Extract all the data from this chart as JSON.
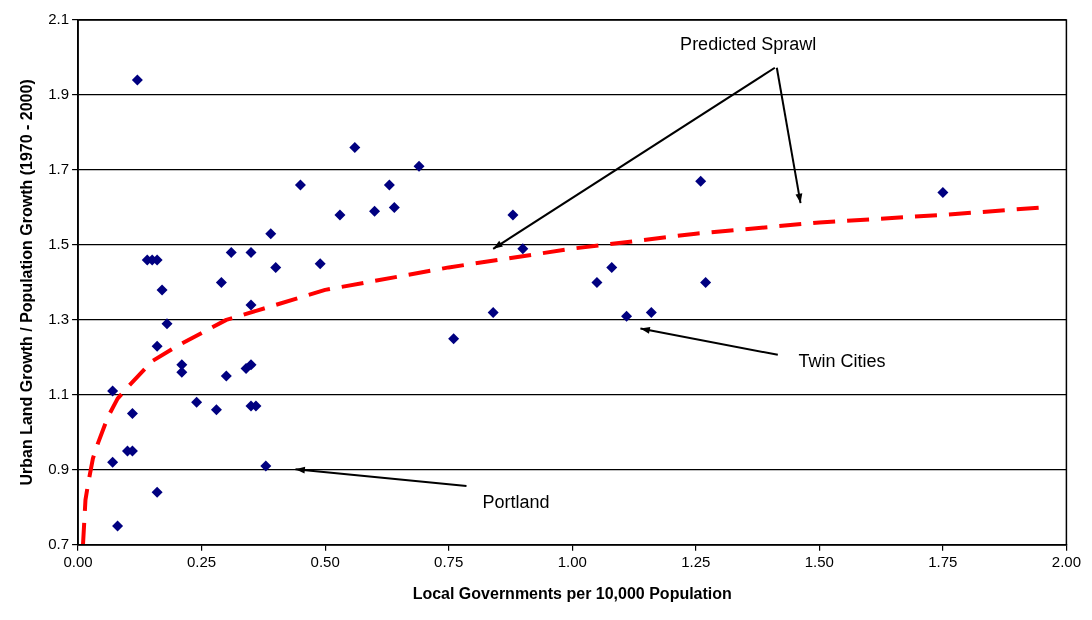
{
  "chart_data": {
    "type": "scatter",
    "xlabel": "Local Governments per 10,000 Population",
    "ylabel": "Urban Land Growth / Population Growth (1970 - 2000)",
    "xlim": [
      0,
      2
    ],
    "ylim": [
      0.7,
      2.1
    ],
    "xticks": [
      {
        "value": 0,
        "label": "0.00"
      },
      {
        "value": 0.25,
        "label": "0.25"
      },
      {
        "value": 0.5,
        "label": "0.50"
      },
      {
        "value": 0.75,
        "label": "0.75"
      },
      {
        "value": 1,
        "label": "1.00"
      },
      {
        "value": 1.25,
        "label": "1.25"
      },
      {
        "value": 1.5,
        "label": "1.50"
      },
      {
        "value": 1.75,
        "label": "1.75"
      },
      {
        "value": 2,
        "label": "2.00"
      }
    ],
    "yticks": [
      0.7,
      0.9,
      1.1,
      1.3,
      1.5,
      1.7,
      1.9,
      2.1
    ],
    "grid": "y",
    "series": [
      {
        "type": "scatter",
        "color": "#000080",
        "marker": "diamond",
        "x": [
          0.12,
          0.14,
          0.15,
          0.16,
          0.17,
          0.18,
          0.16,
          0.21,
          0.21,
          0.07,
          0.11,
          0.1,
          0.11,
          0.07,
          0.16,
          0.08,
          0.24,
          0.28,
          0.3,
          0.29,
          0.31,
          0.35,
          0.35,
          0.34,
          0.35,
          0.35,
          0.36,
          0.38,
          0.39,
          0.4,
          0.45,
          0.49,
          0.53,
          0.56,
          0.6,
          0.63,
          0.64,
          0.69,
          0.88,
          0.9,
          0.84,
          0.76,
          1.05,
          1.08,
          1.11,
          1.16,
          1.26,
          1.27,
          1.75
        ],
        "values": [
          1.94,
          1.46,
          1.46,
          1.46,
          1.38,
          1.29,
          1.23,
          1.18,
          1.16,
          1.11,
          1.05,
          0.95,
          0.95,
          0.92,
          0.84,
          0.75,
          1.08,
          1.06,
          1.15,
          1.4,
          1.48,
          1.48,
          1.34,
          1.17,
          1.18,
          1.07,
          1.07,
          0.91,
          1.53,
          1.44,
          1.66,
          1.45,
          1.58,
          1.76,
          1.59,
          1.66,
          1.6,
          1.71,
          1.58,
          1.49,
          1.32,
          1.25,
          1.4,
          1.44,
          1.31,
          1.32,
          1.67,
          1.4,
          1.64
        ]
      },
      {
        "type": "line",
        "color": "#ff0000",
        "marker": "none",
        "line_style": "dashed",
        "x": [
          0.01,
          0.015,
          0.02,
          0.03,
          0.04,
          0.06,
          0.08,
          0.1,
          0.15,
          0.2,
          0.3,
          0.4,
          0.5,
          0.75,
          1,
          1.25,
          1.5,
          1.75,
          1.95
        ],
        "values": [
          0.7,
          0.82,
          0.86,
          0.93,
          0.97,
          1.04,
          1.09,
          1.12,
          1.19,
          1.23,
          1.3,
          1.34,
          1.38,
          1.44,
          1.49,
          1.53,
          1.56,
          1.58,
          1.6
        ]
      }
    ],
    "annotations": [
      "Predicted Sprawl",
      "Twin Cities",
      "Portland"
    ]
  }
}
